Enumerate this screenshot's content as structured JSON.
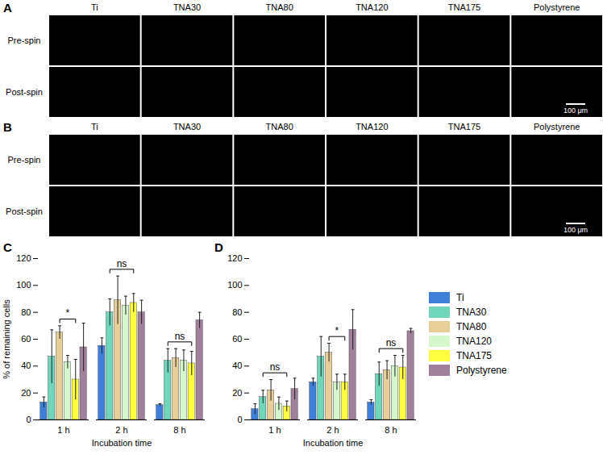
{
  "images": [
    {
      "panel_label": "A",
      "columns": [
        "Ti",
        "TNA30",
        "TNA80",
        "TNA120",
        "TNA175",
        "Polystyrene"
      ],
      "rows": [
        "Pre-spin",
        "Post-spin"
      ],
      "scale_bar": "100 μm"
    },
    {
      "panel_label": "B",
      "columns": [
        "Ti",
        "TNA30",
        "TNA80",
        "TNA120",
        "TNA175",
        "Polystyrene"
      ],
      "rows": [
        "Pre-spin",
        "Post-spin"
      ],
      "scale_bar": "100 μm"
    }
  ],
  "chart_data": [
    {
      "type": "bar",
      "panel_label": "C",
      "x_label": "Incubation time",
      "y_label": "% of remaining cells",
      "categories": [
        "1 h",
        "2 h",
        "8 h"
      ],
      "series": [
        {
          "name": "Ti",
          "color": "#3d7fd9",
          "values": [
            13,
            55,
            11
          ],
          "errors": [
            4,
            6,
            1
          ]
        },
        {
          "name": "TNA30",
          "color": "#6fd6b9",
          "values": [
            47,
            80,
            44
          ],
          "errors": [
            20,
            10,
            9
          ]
        },
        {
          "name": "TNA80",
          "color": "#e8cf9a",
          "values": [
            65,
            89,
            46
          ],
          "errors": [
            5,
            18,
            7
          ]
        },
        {
          "name": "TNA120",
          "color": "#d6f7cc",
          "values": [
            43,
            85,
            44
          ],
          "errors": [
            5,
            7,
            8
          ]
        },
        {
          "name": "TNA175",
          "color": "#ffff40",
          "values": [
            30,
            87,
            42
          ],
          "errors": [
            15,
            7,
            9
          ]
        },
        {
          "name": "Polystyrene",
          "color": "#a0809a",
          "values": [
            54,
            80,
            74
          ],
          "errors": [
            18,
            9,
            6
          ]
        }
      ],
      "ylim": [
        0,
        120
      ],
      "yticks": [
        0,
        20,
        40,
        60,
        80,
        100,
        120
      ],
      "annotations": [
        {
          "text": "*",
          "category": "1 h",
          "from": "TNA80",
          "to": "TNA175"
        },
        {
          "text": "ns",
          "category": "2 h",
          "from": "TNA30",
          "to": "TNA175"
        },
        {
          "text": "ns",
          "category": "8 h",
          "from": "TNA30",
          "to": "TNA175"
        }
      ]
    },
    {
      "type": "bar",
      "panel_label": "D",
      "categories": [
        "1 h",
        "2 h",
        "8 h"
      ],
      "x_label": "Incubation time",
      "series": [
        {
          "name": "Ti",
          "color": "#3d7fd9",
          "values": [
            8,
            28,
            13
          ],
          "errors": [
            4,
            3,
            2
          ]
        },
        {
          "name": "TNA30",
          "color": "#6fd6b9",
          "values": [
            17,
            47,
            34
          ],
          "errors": [
            5,
            15,
            9
          ]
        },
        {
          "name": "TNA80",
          "color": "#e8cf9a",
          "values": [
            22,
            50,
            37
          ],
          "errors": [
            8,
            7,
            7
          ]
        },
        {
          "name": "TNA120",
          "color": "#d6f7cc",
          "values": [
            12,
            28,
            40
          ],
          "errors": [
            5,
            6,
            8
          ]
        },
        {
          "name": "TNA175",
          "color": "#ffff40",
          "values": [
            10,
            28,
            39
          ],
          "errors": [
            4,
            6,
            9
          ]
        },
        {
          "name": "Polystyrene",
          "color": "#a0809a",
          "values": [
            23,
            67,
            66
          ],
          "errors": [
            8,
            15,
            2
          ]
        }
      ],
      "ylim": [
        0,
        120
      ],
      "yticks": [
        0,
        20,
        40,
        60,
        80,
        100,
        120
      ],
      "legend": "right",
      "annotations": [
        {
          "text": "ns",
          "category": "1 h",
          "from": "TNA30",
          "to": "TNA175"
        },
        {
          "text": "*",
          "category": "2 h",
          "from": "TNA80",
          "to": "TNA175"
        },
        {
          "text": "ns",
          "category": "8 h",
          "from": "TNA30",
          "to": "TNA175"
        }
      ]
    }
  ]
}
